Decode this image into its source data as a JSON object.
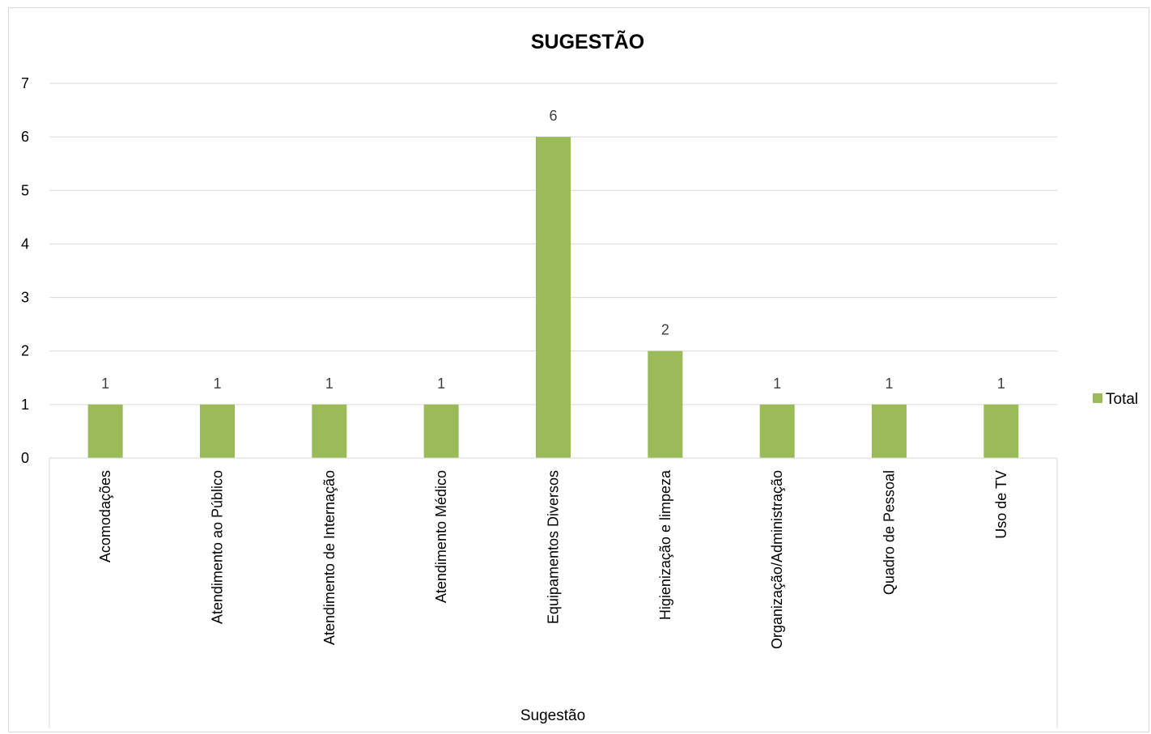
{
  "chart_data": {
    "type": "bar",
    "title": "SUGESTÃO",
    "xlabel": "Sugestão",
    "ylabel": "",
    "categories": [
      "Acomodações",
      "Atendimento ao Público",
      "Atendimento de Internação",
      "Atendimento Médico",
      "Equipamentos Diversos",
      "Higienização e limpeza",
      "Organização/Administração",
      "Quadro de Pessoal",
      "Uso de TV"
    ],
    "series": [
      {
        "name": "Total",
        "values": [
          1,
          1,
          1,
          1,
          6,
          2,
          1,
          1,
          1
        ],
        "color": "#9bbb59"
      }
    ],
    "ylim": [
      0,
      7
    ],
    "yticks": [
      "0",
      "1",
      "2",
      "3",
      "4",
      "5",
      "6",
      "7"
    ],
    "grid": true,
    "gridline_color": "#d9d9d9",
    "data_labels": true,
    "legend_position": "right"
  }
}
